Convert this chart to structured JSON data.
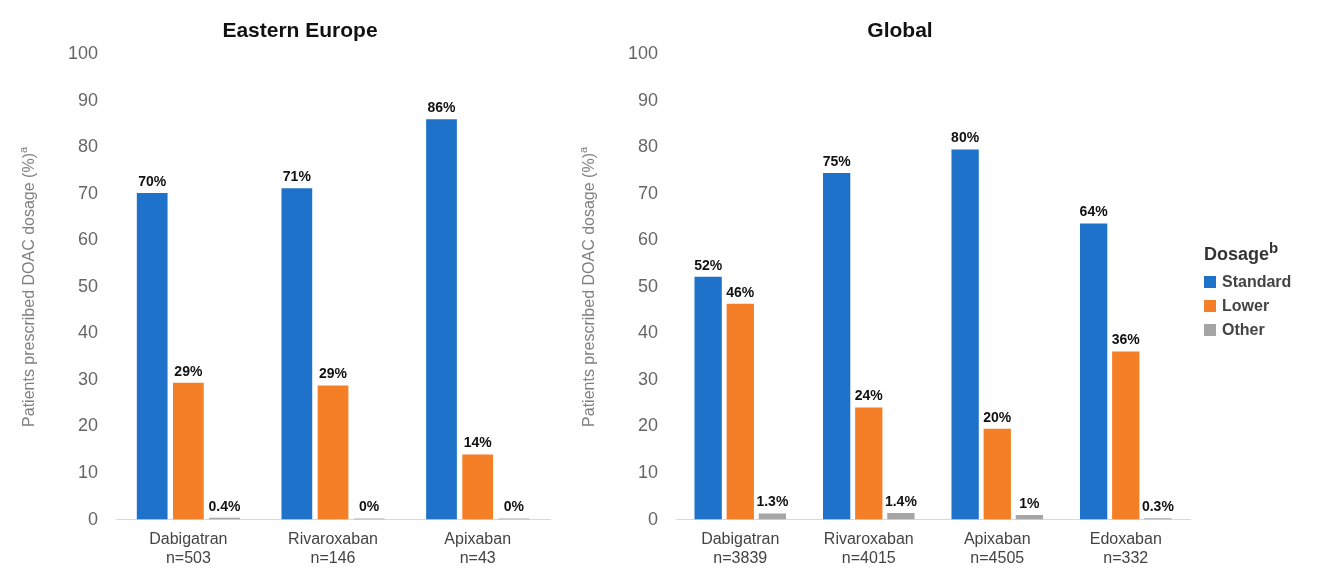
{
  "chart_data": [
    {
      "type": "bar",
      "title": "Eastern Europe",
      "ylabel": "Patients prescribed DOAC dosage (%)$^{a}$",
      "categories": [
        "Dabigatran\nn=503",
        "Rivaroxaban\nn=146",
        "Apixaban\nn=43"
      ],
      "ylim": [
        0,
        100
      ],
      "yticks": [
        0,
        10,
        20,
        30,
        40,
        50,
        60,
        70,
        80,
        90,
        100
      ],
      "grid": false,
      "series": [
        {
          "color": "#1f72c9",
          "values": [
            70.2,
            71.2,
            86
          ],
          "value_labels": [
            "70%",
            "71%",
            "86%"
          ]
        },
        {
          "color": "#f57f26",
          "values": [
            29.4,
            28.8,
            14
          ],
          "value_labels": [
            "29%",
            "29%",
            "14%"
          ]
        },
        {
          "color": "#a5a5a5",
          "values": [
            0.4,
            0,
            0
          ],
          "value_labels": [
            "0.4%",
            "0%",
            "0%"
          ]
        }
      ]
    },
    {
      "type": "bar",
      "title": "Global",
      "ylabel": "Patients prescribed DOAC dosage (%)$^{a}$",
      "categories": [
        "Dabigatran\nn=3839",
        "Rivaroxaban\nn=4015",
        "Apixaban\nn=4505",
        "Edoxaban\nn=332"
      ],
      "ylim": [
        0,
        100
      ],
      "yticks": [
        0,
        10,
        20,
        30,
        40,
        50,
        60,
        70,
        80,
        90,
        100
      ],
      "grid": false,
      "legend": "right",
      "legend_title": "Dosage$^{b}$",
      "series": [
        {
          "name": "Standard",
          "color": "#1f72c9",
          "values": [
            52.2,
            74.5,
            79.5,
            63.6
          ],
          "value_labels": [
            "52%",
            "75%",
            "80%",
            "64%"
          ]
        },
        {
          "name": "Lower",
          "color": "#f57f26",
          "values": [
            46.4,
            24.1,
            19.5,
            36.1
          ],
          "value_labels": [
            "46%",
            "24%",
            "20%",
            "36%"
          ]
        },
        {
          "name": "Other",
          "color": "#a5a5a5",
          "values": [
            1.3,
            1.4,
            1,
            0.3
          ],
          "value_labels": [
            "1.3%",
            "1.4%",
            "1%",
            "0.3%"
          ]
        }
      ]
    }
  ]
}
